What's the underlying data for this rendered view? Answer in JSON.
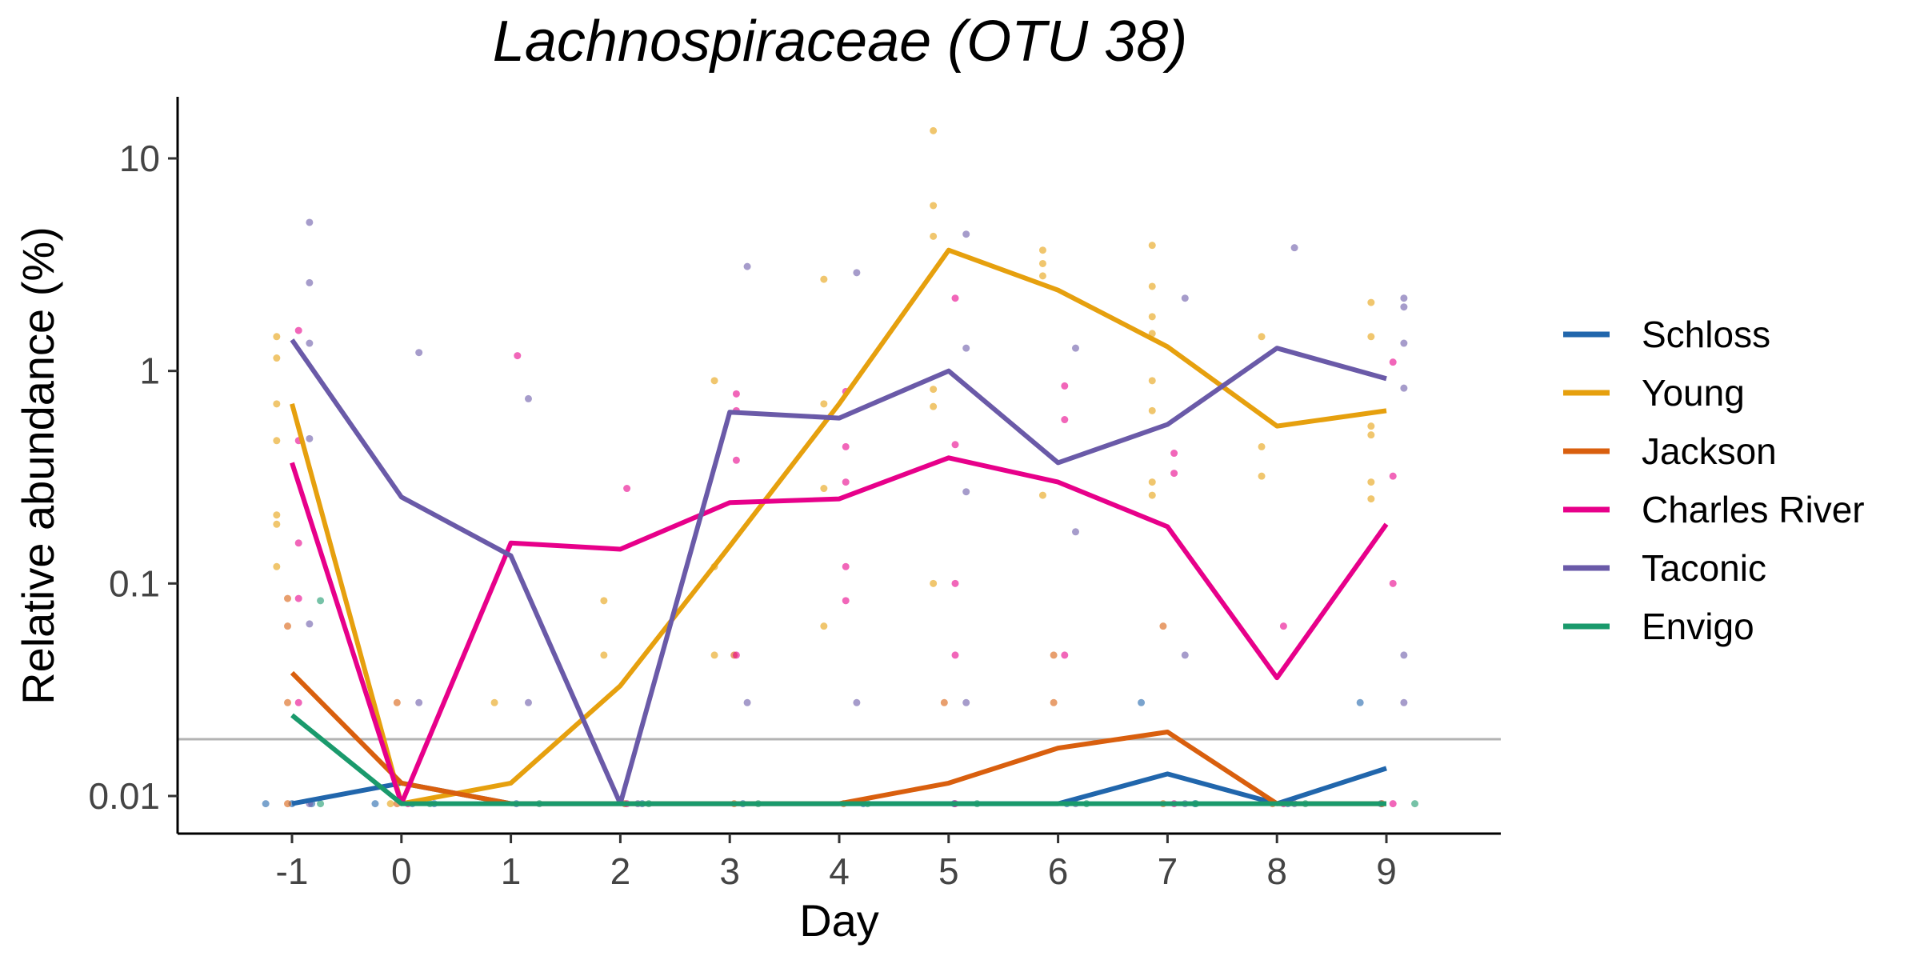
{
  "chart_data": {
    "type": "line",
    "title": "Lachnospiraceae (OTU 38)",
    "xlabel": "Day",
    "ylabel": "Relative abundance (%)",
    "x": [
      -1,
      0,
      1,
      2,
      3,
      4,
      5,
      6,
      7,
      8,
      9
    ],
    "x_tick_labels": [
      "-1",
      "0",
      "1",
      "2",
      "3",
      "4",
      "5",
      "6",
      "7",
      "8",
      "9"
    ],
    "xlim": [
      -2,
      10
    ],
    "y_scale": "log10",
    "ylim": [
      0.0065,
      20
    ],
    "y_ticks": [
      0.01,
      0.1,
      1,
      10
    ],
    "y_tick_labels": [
      "0.01",
      "0.1",
      "1",
      "10"
    ],
    "limit_of_detection": 0.0185,
    "grid": false,
    "legend_position": "right",
    "series": [
      {
        "name": "Schloss",
        "color": "#2166ac",
        "values": [
          0.0092,
          0.0115,
          0.0092,
          0.0092,
          0.0092,
          0.0092,
          0.0092,
          0.0092,
          0.0127,
          0.0092,
          0.0135
        ],
        "points": [
          [
            -1.24,
            0.0092
          ],
          [
            -1.0,
            0.0092
          ],
          [
            -0.82,
            0.0092
          ],
          [
            -0.24,
            0.0092
          ],
          [
            0.1,
            0.0092
          ],
          [
            0.3,
            0.0092
          ],
          [
            1.05,
            0.0092
          ],
          [
            2.2,
            0.0092
          ],
          [
            3.12,
            0.0092
          ],
          [
            4.22,
            0.0092
          ],
          [
            5.05,
            0.0092
          ],
          [
            6.08,
            0.0092
          ],
          [
            6.76,
            0.0275
          ],
          [
            7.25,
            0.0092
          ],
          [
            8.1,
            0.0092
          ],
          [
            8.76,
            0.0275
          ],
          [
            8.95,
            0.0092
          ]
        ]
      },
      {
        "name": "Young",
        "color": "#e6a00e",
        "values": [
          0.7,
          0.0092,
          0.0115,
          0.033,
          0.15,
          0.7,
          3.7,
          2.4,
          1.3,
          0.55,
          0.65
        ],
        "points": [
          [
            -1.14,
            1.45
          ],
          [
            -1.14,
            1.15
          ],
          [
            -1.14,
            0.7
          ],
          [
            -1.14,
            0.47
          ],
          [
            -1.14,
            0.21
          ],
          [
            -1.14,
            0.19
          ],
          [
            -1.14,
            0.12
          ],
          [
            -0.1,
            0.0092
          ],
          [
            0.85,
            0.0275
          ],
          [
            1.85,
            0.083
          ],
          [
            1.85,
            0.046
          ],
          [
            2.86,
            0.9
          ],
          [
            2.86,
            0.12
          ],
          [
            2.86,
            0.046
          ],
          [
            3.86,
            2.7
          ],
          [
            3.86,
            0.7
          ],
          [
            3.86,
            0.063
          ],
          [
            3.86,
            0.28
          ],
          [
            4.86,
            13.5
          ],
          [
            4.86,
            6.0
          ],
          [
            4.86,
            4.3
          ],
          [
            4.86,
            0.68
          ],
          [
            4.86,
            0.1
          ],
          [
            4.86,
            0.82
          ],
          [
            5.86,
            3.7
          ],
          [
            5.86,
            3.2
          ],
          [
            5.86,
            2.8
          ],
          [
            5.86,
            0.26
          ],
          [
            6.86,
            3.9
          ],
          [
            6.86,
            2.5
          ],
          [
            6.86,
            1.8
          ],
          [
            6.86,
            1.5
          ],
          [
            6.86,
            0.9
          ],
          [
            6.86,
            0.65
          ],
          [
            6.86,
            0.3
          ],
          [
            6.86,
            0.26
          ],
          [
            7.86,
            1.45
          ],
          [
            7.86,
            0.44
          ],
          [
            7.86,
            0.32
          ],
          [
            8.86,
            2.1
          ],
          [
            8.86,
            1.45
          ],
          [
            8.86,
            0.55
          ],
          [
            8.86,
            0.5
          ],
          [
            8.86,
            0.3
          ],
          [
            8.86,
            0.25
          ]
        ]
      },
      {
        "name": "Jackson",
        "color": "#d95f0e",
        "values": [
          0.038,
          0.0115,
          0.0092,
          0.0092,
          0.0092,
          0.0092,
          0.0115,
          0.0168,
          0.02,
          0.0092,
          0.0092
        ],
        "points": [
          [
            -1.04,
            0.085
          ],
          [
            -1.04,
            0.063
          ],
          [
            -1.04,
            0.0275
          ],
          [
            -1.04,
            0.0092
          ],
          [
            -0.04,
            0.0275
          ],
          [
            -0.04,
            0.0092
          ],
          [
            2.04,
            0.0092
          ],
          [
            3.04,
            0.046
          ],
          [
            3.04,
            0.0092
          ],
          [
            4.04,
            0.0092
          ],
          [
            4.96,
            0.0275
          ],
          [
            5.96,
            0.046
          ],
          [
            5.96,
            0.0275
          ],
          [
            6.96,
            0.063
          ],
          [
            6.96,
            0.0092
          ],
          [
            7.96,
            0.0092
          ],
          [
            8.96,
            0.0092
          ]
        ]
      },
      {
        "name": "Charles River",
        "color": "#e7008a",
        "values": [
          0.37,
          0.0092,
          0.155,
          0.145,
          0.24,
          0.25,
          0.39,
          0.3,
          0.185,
          0.036,
          0.19
        ],
        "points": [
          [
            -0.94,
            1.55
          ],
          [
            -0.94,
            0.47
          ],
          [
            -0.94,
            0.155
          ],
          [
            -0.94,
            0.085
          ],
          [
            -0.94,
            0.0275
          ],
          [
            0.06,
            0.0092
          ],
          [
            1.06,
            1.18
          ],
          [
            2.06,
            0.28
          ],
          [
            2.06,
            0.0092
          ],
          [
            3.06,
            0.78
          ],
          [
            3.06,
            0.65
          ],
          [
            3.06,
            0.38
          ],
          [
            3.06,
            0.046
          ],
          [
            4.06,
            0.8
          ],
          [
            4.06,
            0.44
          ],
          [
            4.06,
            0.3
          ],
          [
            4.06,
            0.12
          ],
          [
            4.06,
            0.083
          ],
          [
            5.06,
            2.2
          ],
          [
            5.06,
            0.45
          ],
          [
            5.06,
            0.1
          ],
          [
            5.06,
            0.046
          ],
          [
            5.06,
            0.0092
          ],
          [
            6.06,
            0.85
          ],
          [
            6.06,
            0.59
          ],
          [
            6.06,
            0.046
          ],
          [
            7.06,
            0.41
          ],
          [
            7.06,
            0.33
          ],
          [
            7.06,
            0.0092
          ],
          [
            8.06,
            0.063
          ],
          [
            8.06,
            0.0092
          ],
          [
            9.06,
            1.1
          ],
          [
            9.06,
            0.32
          ],
          [
            9.06,
            0.1
          ],
          [
            9.06,
            0.0092
          ]
        ]
      },
      {
        "name": "Taconic",
        "color": "#6a5aa8",
        "values": [
          1.4,
          0.255,
          0.135,
          0.0092,
          0.64,
          0.6,
          1.0,
          0.37,
          0.56,
          1.28,
          0.92
        ],
        "points": [
          [
            -0.84,
            5.0
          ],
          [
            -0.84,
            2.6
          ],
          [
            -0.84,
            1.35
          ],
          [
            -0.84,
            0.48
          ],
          [
            -0.84,
            0.0645
          ],
          [
            -0.84,
            0.0092
          ],
          [
            0.16,
            1.22
          ],
          [
            0.16,
            0.0275
          ],
          [
            1.16,
            0.74
          ],
          [
            1.16,
            0.0275
          ],
          [
            2.16,
            0.0092
          ],
          [
            3.16,
            3.1
          ],
          [
            3.16,
            0.0275
          ],
          [
            4.16,
            2.9
          ],
          [
            4.16,
            0.0275
          ],
          [
            5.16,
            4.4
          ],
          [
            5.16,
            1.28
          ],
          [
            5.16,
            0.27
          ],
          [
            5.16,
            0.0275
          ],
          [
            6.16,
            1.28
          ],
          [
            6.16,
            0.175
          ],
          [
            6.16,
            0.0092
          ],
          [
            7.16,
            2.2
          ],
          [
            7.16,
            0.046
          ],
          [
            7.16,
            0.0092
          ],
          [
            8.16,
            3.8
          ],
          [
            8.16,
            0.0092
          ],
          [
            9.16,
            2.2
          ],
          [
            9.16,
            2.0
          ],
          [
            9.16,
            1.35
          ],
          [
            9.16,
            0.83
          ],
          [
            9.16,
            0.046
          ],
          [
            9.16,
            0.0275
          ]
        ]
      },
      {
        "name": "Envigo",
        "color": "#1a9a6c",
        "values": [
          0.024,
          0.0092,
          0.0092,
          0.0092,
          0.0092,
          0.0092,
          0.0092,
          0.0092,
          0.0092,
          0.0092,
          0.0092
        ],
        "points": [
          [
            -0.74,
            0.083
          ],
          [
            -0.74,
            0.0092
          ],
          [
            0.26,
            0.0092
          ],
          [
            1.26,
            0.0092
          ],
          [
            2.26,
            0.0092
          ],
          [
            3.26,
            0.0092
          ],
          [
            4.26,
            0.0092
          ],
          [
            5.26,
            0.0092
          ],
          [
            6.26,
            0.0092
          ],
          [
            7.26,
            0.0092
          ],
          [
            8.26,
            0.0092
          ],
          [
            9.26,
            0.0092
          ]
        ]
      }
    ]
  }
}
